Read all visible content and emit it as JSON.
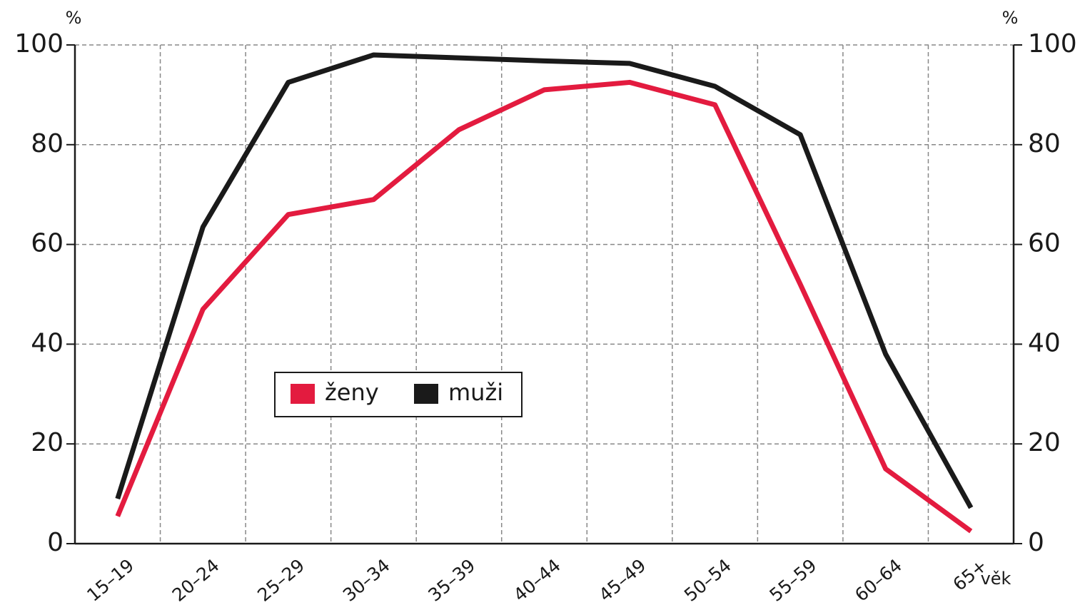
{
  "chart_data": {
    "type": "line",
    "y_label": "%",
    "y2_label": "%",
    "x_label": "věk",
    "categories": [
      "15–19",
      "20–24",
      "25–29",
      "30–34",
      "35–39",
      "40–44",
      "45–49",
      "50–54",
      "55–59",
      "60–64",
      "65+"
    ],
    "series": [
      {
        "name": "ženy",
        "color": "#e31b3f",
        "values": [
          5.5,
          47,
          66,
          69,
          83,
          91,
          92.5,
          88,
          52,
          15,
          2.5
        ]
      },
      {
        "name": "muži",
        "color": "#1a1a1a",
        "values": [
          9,
          63.5,
          92.5,
          98,
          97.4,
          96.8,
          96.3,
          91.7,
          82,
          38,
          7.2
        ]
      }
    ],
    "ylim": [
      0,
      100
    ],
    "yticks": [
      0,
      20,
      40,
      60,
      80,
      100
    ],
    "y2lim": [
      0,
      100
    ],
    "y2ticks": [
      0,
      20,
      40,
      60,
      80,
      100
    ],
    "grid": true
  }
}
